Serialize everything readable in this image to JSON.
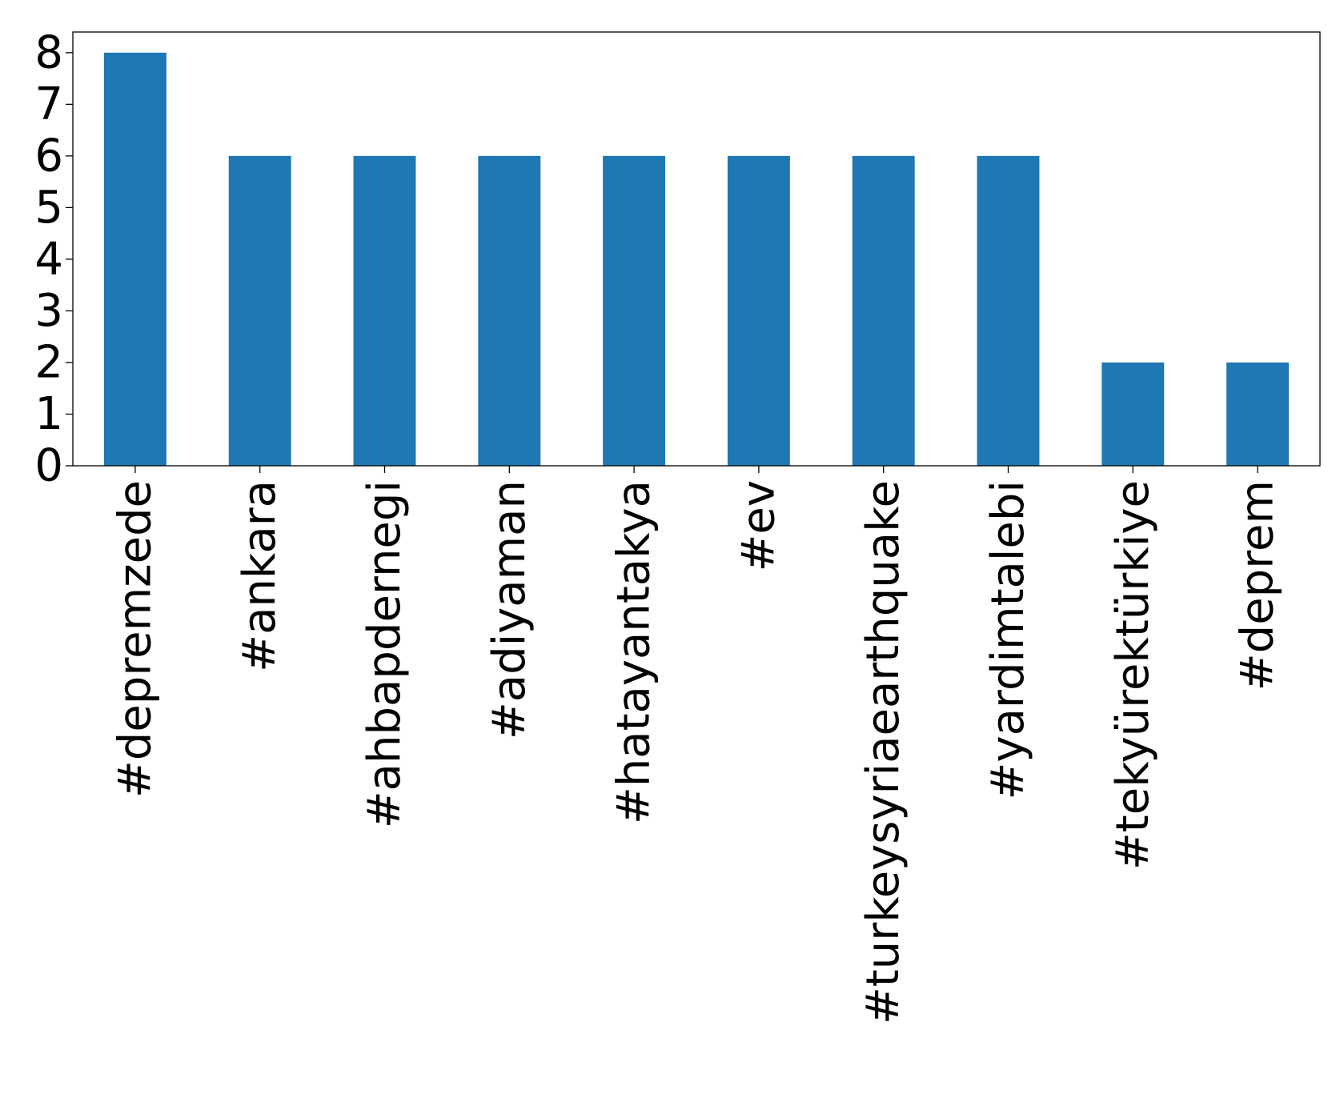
{
  "chart_data": {
    "type": "bar",
    "categories": [
      "#depremzede",
      "#ankara",
      "#ahbapdernegi",
      "#adiyaman",
      "#hatayantakya",
      "#ev",
      "#turkeysyriaearthquake",
      "#yardimtalebi",
      "#tekyürektürkiye",
      "#deprem"
    ],
    "values": [
      8,
      6,
      6,
      6,
      6,
      6,
      6,
      6,
      2,
      2
    ],
    "title": "",
    "xlabel": "",
    "ylabel": "",
    "ylim": [
      0,
      8.4
    ],
    "yticks": [
      "0",
      "1",
      "2",
      "3",
      "4",
      "5",
      "6",
      "7",
      "8"
    ],
    "grid": false,
    "bar_color": "#1f77b4"
  }
}
